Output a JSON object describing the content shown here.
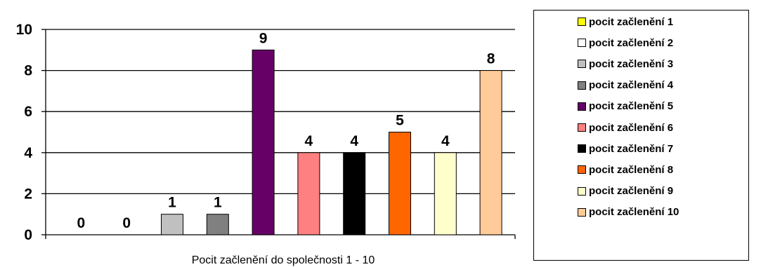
{
  "chart_data": {
    "type": "bar",
    "title": "",
    "xlabel": "Pocit začlenění do společnosti 1 - 10",
    "ylabel": "",
    "ylim": [
      0,
      10
    ],
    "yticks": [
      0,
      2,
      4,
      6,
      8,
      10
    ],
    "grid": true,
    "legend_position": "right",
    "series": [
      {
        "name": "pocit začlenění 1",
        "value": 0,
        "label": "0",
        "color": "#ffff00"
      },
      {
        "name": "pocit začlenění 2",
        "value": 0,
        "label": "0",
        "color": "#ffffff"
      },
      {
        "name": "pocit začlenění 3",
        "value": 1,
        "label": "1",
        "color": "#c0c0c0"
      },
      {
        "name": "pocit začlenění 4",
        "value": 1,
        "label": "1",
        "color": "#808080"
      },
      {
        "name": "pocit začlenění 5",
        "value": 9,
        "label": "9",
        "color": "#660066"
      },
      {
        "name": "pocit začlenění 6",
        "value": 4,
        "label": "4",
        "color": "#ff8080"
      },
      {
        "name": "pocit začlenění 7",
        "value": 4,
        "label": "4",
        "color": "#000000"
      },
      {
        "name": "pocit začlenění 8",
        "value": 5,
        "label": "5",
        "color": "#ff6600"
      },
      {
        "name": "pocit začlenění 9",
        "value": 4,
        "label": "4",
        "color": "#ffffcc"
      },
      {
        "name": "pocit začlenění 10",
        "value": 8,
        "label": "8",
        "color": "#ffcc99"
      }
    ]
  }
}
